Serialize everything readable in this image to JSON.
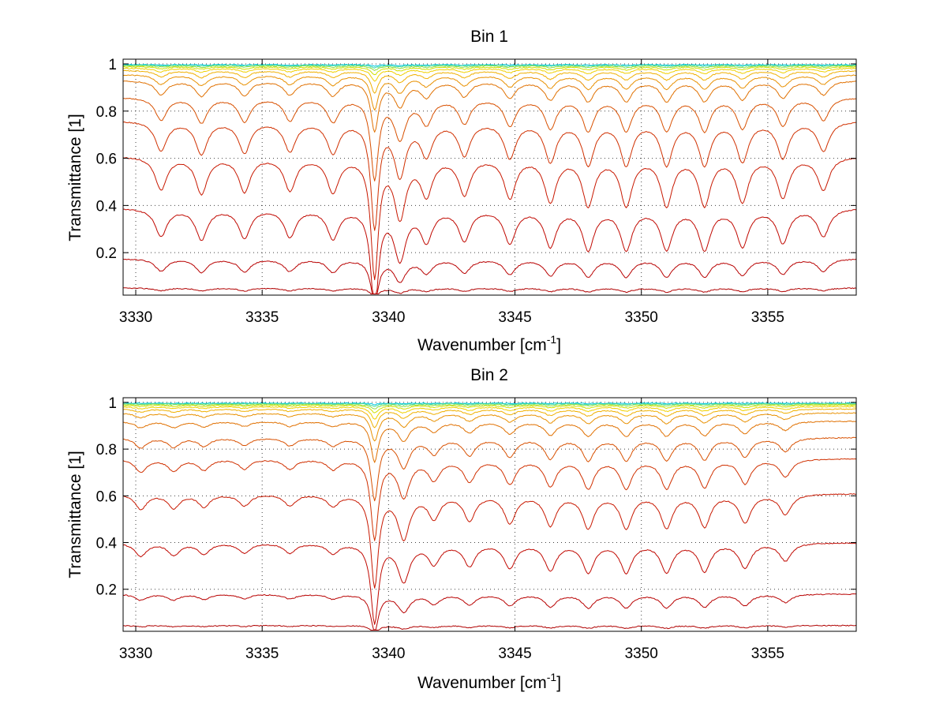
{
  "chart_data": [
    {
      "type": "line",
      "title": "Bin 1",
      "xlabel": "Wavenumber [cm",
      "xlabel_sup": "-1",
      "xlabel_suffix": "]",
      "ylabel": "Transmittance [1]",
      "xlim": [
        3329.5,
        3358.5
      ],
      "ylim": [
        0.02,
        1.02
      ],
      "grid": true,
      "xticks": [
        3330,
        3335,
        3340,
        3345,
        3350,
        3355
      ],
      "xtick_labels": [
        "3330",
        "3335",
        "3340",
        "3345",
        "3350",
        "3355"
      ],
      "yticks": [
        0.2,
        0.4,
        0.6,
        0.8,
        1
      ],
      "ytick_labels": [
        "0.2",
        "0.4",
        "0.6",
        "0.8",
        "1"
      ],
      "lines_at_wavenumber": [
        3331.0,
        3332.6,
        3334.3,
        3336.1,
        3337.8,
        3339.45,
        3340.45,
        3341.5,
        3343.0,
        3344.8,
        3346.4,
        3347.9,
        3349.4,
        3351.0,
        3352.5,
        3354.0,
        3355.6,
        3357.2
      ],
      "line_strength": [
        0.9,
        1.0,
        0.95,
        0.9,
        0.95,
        3.2,
        1.6,
        1.0,
        1.0,
        1.1,
        1.2,
        1.3,
        1.3,
        1.3,
        1.3,
        1.2,
        1.1,
        0.9
      ],
      "series": [
        {
          "color": "#00c8e0",
          "baseline": 0.997,
          "depth": 0.002
        },
        {
          "color": "#40d8a0",
          "baseline": 0.995,
          "depth": 0.004
        },
        {
          "color": "#90e040",
          "baseline": 0.992,
          "depth": 0.007
        },
        {
          "color": "#d0e000",
          "baseline": 0.988,
          "depth": 0.012
        },
        {
          "color": "#f0d000",
          "baseline": 0.982,
          "depth": 0.02
        },
        {
          "color": "#f0b000",
          "baseline": 0.972,
          "depth": 0.035
        },
        {
          "color": "#e89000",
          "baseline": 0.955,
          "depth": 0.055
        },
        {
          "color": "#e07000",
          "baseline": 0.93,
          "depth": 0.08
        },
        {
          "color": "#d85000",
          "baseline": 0.86,
          "depth": 0.13
        },
        {
          "color": "#d03000",
          "baseline": 0.76,
          "depth": 0.17
        },
        {
          "color": "#c81800",
          "baseline": 0.61,
          "depth": 0.19
        },
        {
          "color": "#c00800",
          "baseline": 0.39,
          "depth": 0.16
        },
        {
          "color": "#b80000",
          "baseline": 0.175,
          "depth": 0.07
        },
        {
          "color": "#b00000",
          "baseline": 0.05,
          "depth": 0.015
        }
      ]
    },
    {
      "type": "line",
      "title": "Bin 2",
      "xlabel": "Wavenumber [cm",
      "xlabel_sup": "-1",
      "xlabel_suffix": "]",
      "ylabel": "Transmittance [1]",
      "xlim": [
        3329.5,
        3358.5
      ],
      "ylim": [
        0.02,
        1.02
      ],
      "grid": true,
      "xticks": [
        3330,
        3335,
        3340,
        3345,
        3350,
        3355
      ],
      "xtick_labels": [
        "3330",
        "3335",
        "3340",
        "3345",
        "3350",
        "3355"
      ],
      "yticks": [
        0.2,
        0.4,
        0.6,
        0.8,
        1
      ],
      "ytick_labels": [
        "0.2",
        "0.4",
        "0.6",
        "0.8",
        "1"
      ],
      "lines_at_wavenumber": [
        3330.2,
        3331.5,
        3332.7,
        3334.3,
        3336.1,
        3337.8,
        3339.45,
        3340.6,
        3341.8,
        3343.2,
        3344.8,
        3346.4,
        3347.9,
        3349.4,
        3351.0,
        3352.5,
        3354.1,
        3355.7
      ],
      "line_strength": [
        0.6,
        0.55,
        0.5,
        0.45,
        0.45,
        0.45,
        3.6,
        1.7,
        0.9,
        1.0,
        1.1,
        1.2,
        1.3,
        1.3,
        1.3,
        1.25,
        1.1,
        0.8
      ],
      "series": [
        {
          "color": "#00c8e0",
          "baseline": 0.997,
          "depth": 0.002
        },
        {
          "color": "#40d8a0",
          "baseline": 0.995,
          "depth": 0.004
        },
        {
          "color": "#90e040",
          "baseline": 0.992,
          "depth": 0.007
        },
        {
          "color": "#d0e000",
          "baseline": 0.988,
          "depth": 0.012
        },
        {
          "color": "#f0d000",
          "baseline": 0.982,
          "depth": 0.02
        },
        {
          "color": "#f0b000",
          "baseline": 0.972,
          "depth": 0.03
        },
        {
          "color": "#e89000",
          "baseline": 0.955,
          "depth": 0.045
        },
        {
          "color": "#e07000",
          "baseline": 0.92,
          "depth": 0.065
        },
        {
          "color": "#d85000",
          "baseline": 0.85,
          "depth": 0.1
        },
        {
          "color": "#d03000",
          "baseline": 0.76,
          "depth": 0.13
        },
        {
          "color": "#c81800",
          "baseline": 0.61,
          "depth": 0.15
        },
        {
          "color": "#c00800",
          "baseline": 0.4,
          "depth": 0.13
        },
        {
          "color": "#b80000",
          "baseline": 0.18,
          "depth": 0.06
        },
        {
          "color": "#b00000",
          "baseline": 0.045,
          "depth": 0.012
        }
      ]
    }
  ]
}
